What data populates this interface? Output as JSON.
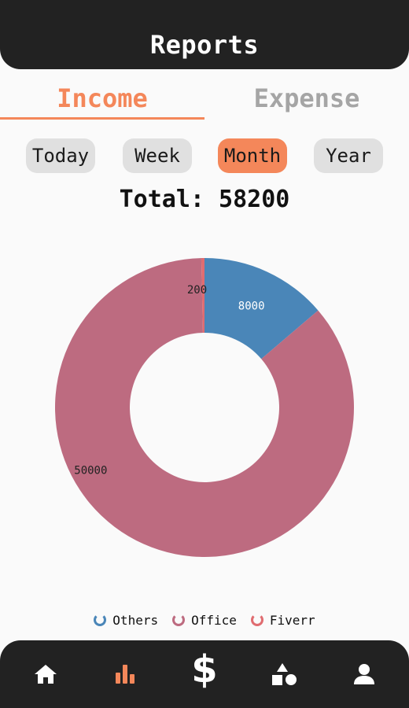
{
  "header": {
    "title": "Reports"
  },
  "tabs": [
    {
      "label": "Income",
      "active": true
    },
    {
      "label": "Expense",
      "active": false
    }
  ],
  "periods": [
    {
      "label": "Today",
      "active": false
    },
    {
      "label": "Week",
      "active": false
    },
    {
      "label": "Month",
      "active": true
    },
    {
      "label": "Year",
      "active": false
    }
  ],
  "total": {
    "text": "Total: 58200"
  },
  "colors": {
    "accent": "#f4875a",
    "header_bg": "#222222",
    "others": "#4a86b8",
    "office": "#bd6b80",
    "fiverr": "#e06c70"
  },
  "chart_data": {
    "type": "pie",
    "donut": true,
    "series": [
      {
        "name": "Others",
        "value": 8000,
        "color": "#4a86b8"
      },
      {
        "name": "Office",
        "value": 50000,
        "color": "#bd6b80"
      },
      {
        "name": "Fiverr",
        "value": 200,
        "color": "#e06c70"
      }
    ],
    "labels": [
      "8000",
      "50000",
      "200"
    ],
    "legend_position": "bottom"
  },
  "legend": [
    {
      "label": "Others",
      "color": "#4a86b8"
    },
    {
      "label": "Office",
      "color": "#bd6b80"
    },
    {
      "label": "Fiverr",
      "color": "#e06c70"
    }
  ],
  "nav": [
    {
      "name": "home",
      "icon": "home-icon"
    },
    {
      "name": "reports",
      "icon": "bar-chart-icon",
      "active": true
    },
    {
      "name": "add",
      "icon": "dollar-icon",
      "text": "$"
    },
    {
      "name": "categories",
      "icon": "shapes-icon"
    },
    {
      "name": "profile",
      "icon": "user-icon"
    }
  ]
}
